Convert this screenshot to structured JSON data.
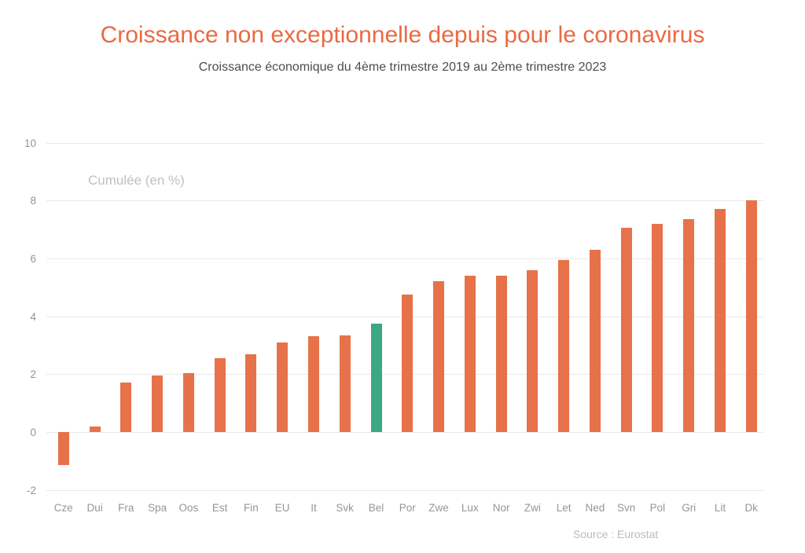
{
  "header": {
    "title": "Croissance non exceptionnelle depuis pour le coronavirus",
    "subtitle": "Croissance économique du 4ème trimestre 2019 au 2ème trimestre 2023"
  },
  "footer": {
    "source": "Source : Eurostat"
  },
  "colors": {
    "title": "#e96a43",
    "bar_default": "#e7724a",
    "bar_highlight": "#3ba884",
    "gridline": "#e9e9e9",
    "axis_text": "#949494",
    "series_label_text": "#c0c0c0"
  },
  "chart_data": {
    "type": "bar",
    "title": "Croissance non exceptionnelle depuis pour le coronavirus",
    "subtitle": "Croissance économique du 4ème trimestre 2019 au 2ème trimestre 2023",
    "ylabel": "Cumulée (en %)",
    "xlabel": "",
    "categories": [
      "Cze",
      "Dui",
      "Fra",
      "Spa",
      "Oos",
      "Est",
      "Fin",
      "EU",
      "It",
      "Svk",
      "Bel",
      "Por",
      "Zwe",
      "Lux",
      "Nor",
      "Zwi",
      "Let",
      "Ned",
      "Svn",
      "Pol",
      "Gri",
      "Lit",
      "Dk"
    ],
    "values": [
      -1.15,
      0.2,
      1.7,
      1.95,
      2.05,
      2.55,
      2.7,
      3.1,
      3.3,
      3.35,
      3.75,
      4.75,
      5.2,
      5.4,
      5.4,
      5.6,
      5.95,
      6.3,
      7.05,
      7.2,
      7.35,
      7.7,
      8.0
    ],
    "highlight_category": "Bel",
    "ylim": [
      -2,
      10
    ],
    "yticks": [
      10,
      8,
      6,
      4,
      2,
      0,
      -2
    ],
    "grid": true,
    "legend_position": "none",
    "source": "Source : Eurostat"
  }
}
